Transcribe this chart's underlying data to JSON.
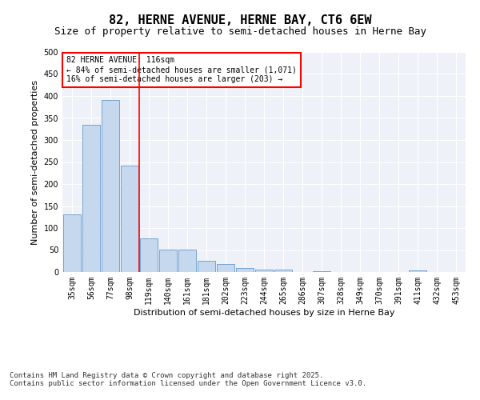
{
  "title_line1": "82, HERNE AVENUE, HERNE BAY, CT6 6EW",
  "title_line2": "Size of property relative to semi-detached houses in Herne Bay",
  "xlabel": "Distribution of semi-detached houses by size in Herne Bay",
  "ylabel": "Number of semi-detached properties",
  "categories": [
    "35sqm",
    "56sqm",
    "77sqm",
    "98sqm",
    "119sqm",
    "140sqm",
    "161sqm",
    "181sqm",
    "202sqm",
    "223sqm",
    "244sqm",
    "265sqm",
    "286sqm",
    "307sqm",
    "328sqm",
    "349sqm",
    "370sqm",
    "391sqm",
    "411sqm",
    "432sqm",
    "453sqm"
  ],
  "values": [
    131,
    335,
    390,
    241,
    76,
    51,
    51,
    26,
    18,
    10,
    6,
    5,
    0,
    2,
    0,
    0,
    0,
    0,
    3,
    0,
    0
  ],
  "bar_color": "#c5d8ed",
  "bar_edge_color": "#6699cc",
  "vline_x": 3.5,
  "vline_color": "red",
  "annotation_text": "82 HERNE AVENUE: 116sqm\n← 84% of semi-detached houses are smaller (1,071)\n16% of semi-detached houses are larger (203) →",
  "annotation_box_color": "white",
  "annotation_box_edge": "red",
  "ylim": [
    0,
    500
  ],
  "yticks": [
    0,
    50,
    100,
    150,
    200,
    250,
    300,
    350,
    400,
    450,
    500
  ],
  "background_color": "#eef2f8",
  "grid_color": "white",
  "footer_text": "Contains HM Land Registry data © Crown copyright and database right 2025.\nContains public sector information licensed under the Open Government Licence v3.0.",
  "title_fontsize": 11,
  "subtitle_fontsize": 9,
  "axis_label_fontsize": 8,
  "tick_fontsize": 7,
  "footer_fontsize": 6.5
}
